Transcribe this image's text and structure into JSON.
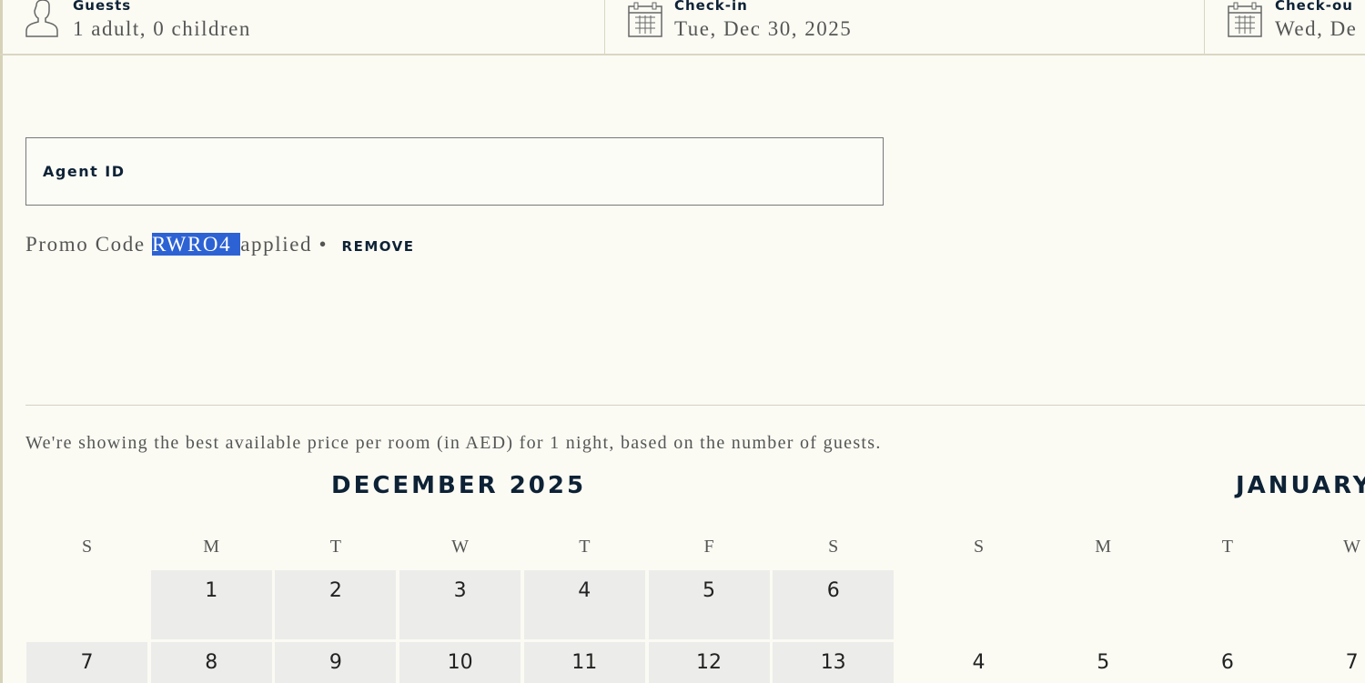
{
  "header": {
    "guests": {
      "label": "Guests",
      "value": "1 adult, 0 children",
      "icon": "person-icon"
    },
    "checkin": {
      "label": "Check-in",
      "value": "Tue, Dec 30, 2025",
      "icon": "calendar-icon"
    },
    "checkout": {
      "label": "Check-ou",
      "value": "Wed, De",
      "icon": "calendar-icon"
    }
  },
  "agent_id": {
    "placeholder": "Agent ID"
  },
  "promo": {
    "prefix": "Promo Code",
    "code": "RWRO4",
    "suffix": "applied",
    "separator": "•",
    "remove_label": "REMOVE"
  },
  "note": "We're showing the best available price per room (in AED) for 1 night, based on the number of guests.",
  "calendar": {
    "december": {
      "title": "DECEMBER 2025",
      "weekdays": [
        "S",
        "M",
        "T",
        "W",
        "T",
        "F",
        "S"
      ],
      "rows": [
        [
          "",
          "1",
          "2",
          "3",
          "4",
          "5",
          "6"
        ],
        [
          "7",
          "8",
          "9",
          "10",
          "11",
          "12",
          "13"
        ]
      ]
    },
    "january": {
      "title": "JANUARY",
      "weekdays": [
        "S",
        "M",
        "T",
        "W"
      ],
      "rows": [
        [
          "",
          "",
          "",
          ""
        ],
        [
          "4",
          "5",
          "6",
          "7"
        ]
      ]
    }
  }
}
